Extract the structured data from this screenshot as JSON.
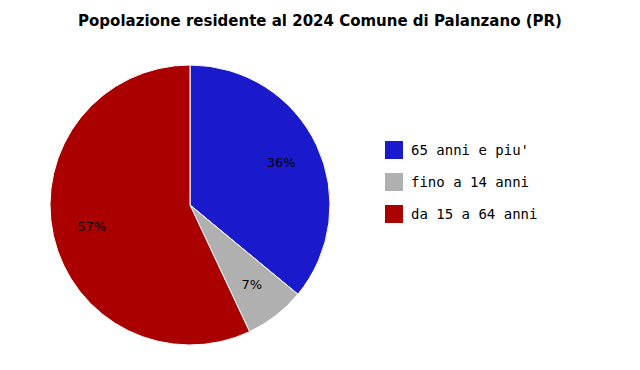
{
  "chart_data": {
    "type": "pie",
    "title": "Popolazione residente al 2024 Comune di Palanzano (PR)",
    "categories": [
      "65 anni e piu'",
      "fino a 14 anni",
      "da 15 a 64 anni"
    ],
    "values": [
      36,
      7,
      57
    ],
    "value_labels": [
      "36%",
      "7%",
      "57%"
    ],
    "colors": [
      "#1a1acc",
      "#b0b0b0",
      "#aa0000"
    ],
    "data_labels": true,
    "legend": "right"
  }
}
